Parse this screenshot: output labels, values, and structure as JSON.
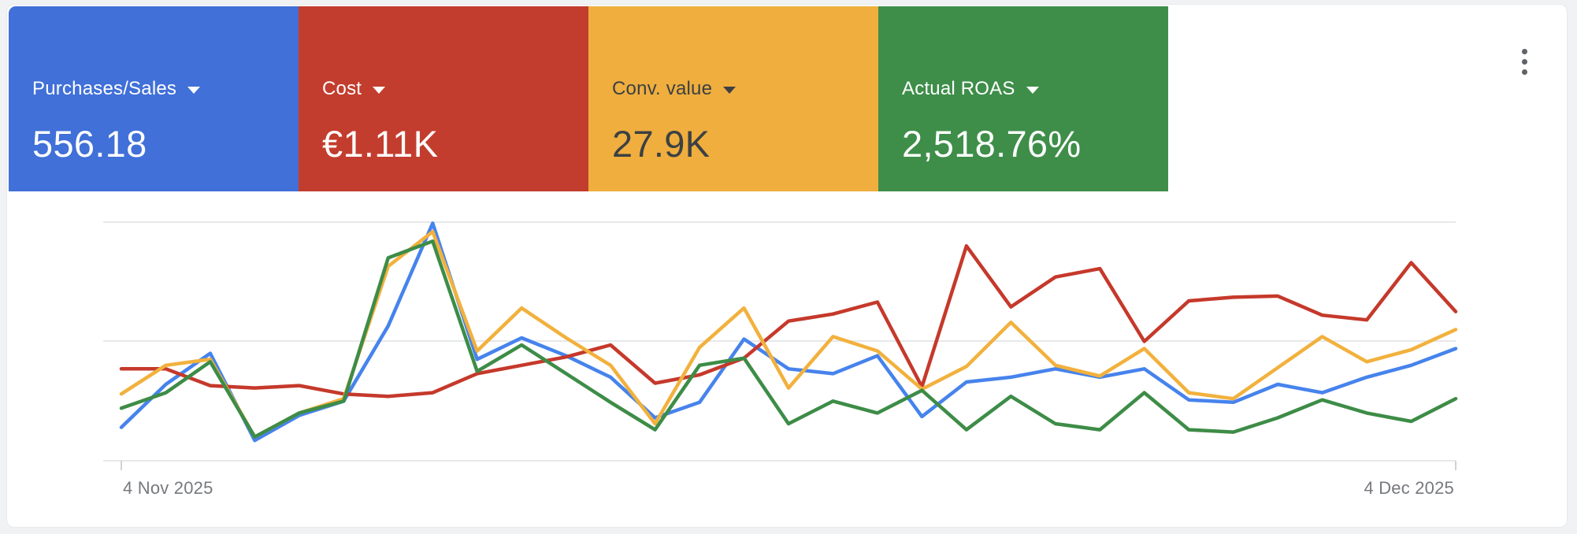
{
  "metrics": [
    {
      "label": "Purchases/Sales",
      "value": "556.18",
      "bg": "#4070D8",
      "fg": "#FFFFFF"
    },
    {
      "label": "Cost",
      "value": "€1.11K",
      "bg": "#C33D2E",
      "fg": "#FFFFFF"
    },
    {
      "label": "Conv. value",
      "value": "27.9K",
      "bg": "#EFAE3E",
      "fg": "#3C4043"
    },
    {
      "label": "Actual ROAS",
      "value": "2,518.76%",
      "bg": "#3E8E49",
      "fg": "#FFFFFF"
    }
  ],
  "menu": {
    "more_options": "More options"
  },
  "chart_data": {
    "type": "line",
    "x_axis": {
      "start_label": "4 Nov 2025",
      "end_label": "4 Dec 2025",
      "points": 31,
      "unit": "day"
    },
    "y_axis": {
      "tick_labels_shown": false,
      "scale": "relative 0-100 (percent of plot height, top gridline = 100)",
      "ylim": [
        0,
        100
      ],
      "gridlines": 3
    },
    "legend": "none (series match metric card colors)",
    "series": [
      {
        "name": "Purchases/Sales",
        "color": "#4683EC",
        "values": [
          14,
          32,
          45,
          8.5,
          19,
          25,
          56.5,
          99.5,
          42.5,
          51.5,
          44,
          35,
          18,
          24.5,
          51,
          38.5,
          36.5,
          44,
          18.5,
          33,
          35,
          38.5,
          35,
          38.5,
          25.5,
          24.5,
          32,
          28.5,
          35,
          40,
          47
        ]
      },
      {
        "name": "Cost",
        "color": "#C5392B",
        "values": [
          38.5,
          38.5,
          31.5,
          30.5,
          31.5,
          28,
          27,
          28.5,
          36.5,
          40,
          43.5,
          48.5,
          32.5,
          36,
          43,
          58.5,
          61.5,
          66.5,
          31,
          90,
          64.5,
          77,
          80.5,
          50,
          67,
          68.5,
          69,
          61,
          59,
          83,
          62.5
        ]
      },
      {
        "name": "Conv. value",
        "color": "#F2B13D",
        "values": [
          28,
          40,
          42.5,
          10,
          20,
          26,
          81.5,
          96,
          46,
          64,
          51.5,
          40,
          15.5,
          47.5,
          64,
          30.5,
          52,
          46,
          30,
          39.5,
          58,
          40,
          35.5,
          47,
          28.5,
          26,
          39,
          52,
          41.5,
          46.5,
          55
        ]
      },
      {
        "name": "Actual ROAS",
        "color": "#3D8C47",
        "values": [
          22,
          28.5,
          41.5,
          10,
          20,
          25,
          85,
          92,
          37.5,
          48.5,
          36.5,
          24.5,
          13,
          40,
          43,
          15.5,
          25,
          20,
          29.5,
          13,
          27,
          15.5,
          13,
          28.5,
          13,
          12,
          18,
          25.5,
          20,
          16.5,
          26
        ]
      }
    ]
  },
  "colors": {
    "page_bg": "#F0F2F4",
    "panel_bg": "#FFFFFF",
    "gridline": "#E6E8EA",
    "axis_text": "#76797E",
    "kebab": "#5F6368"
  }
}
